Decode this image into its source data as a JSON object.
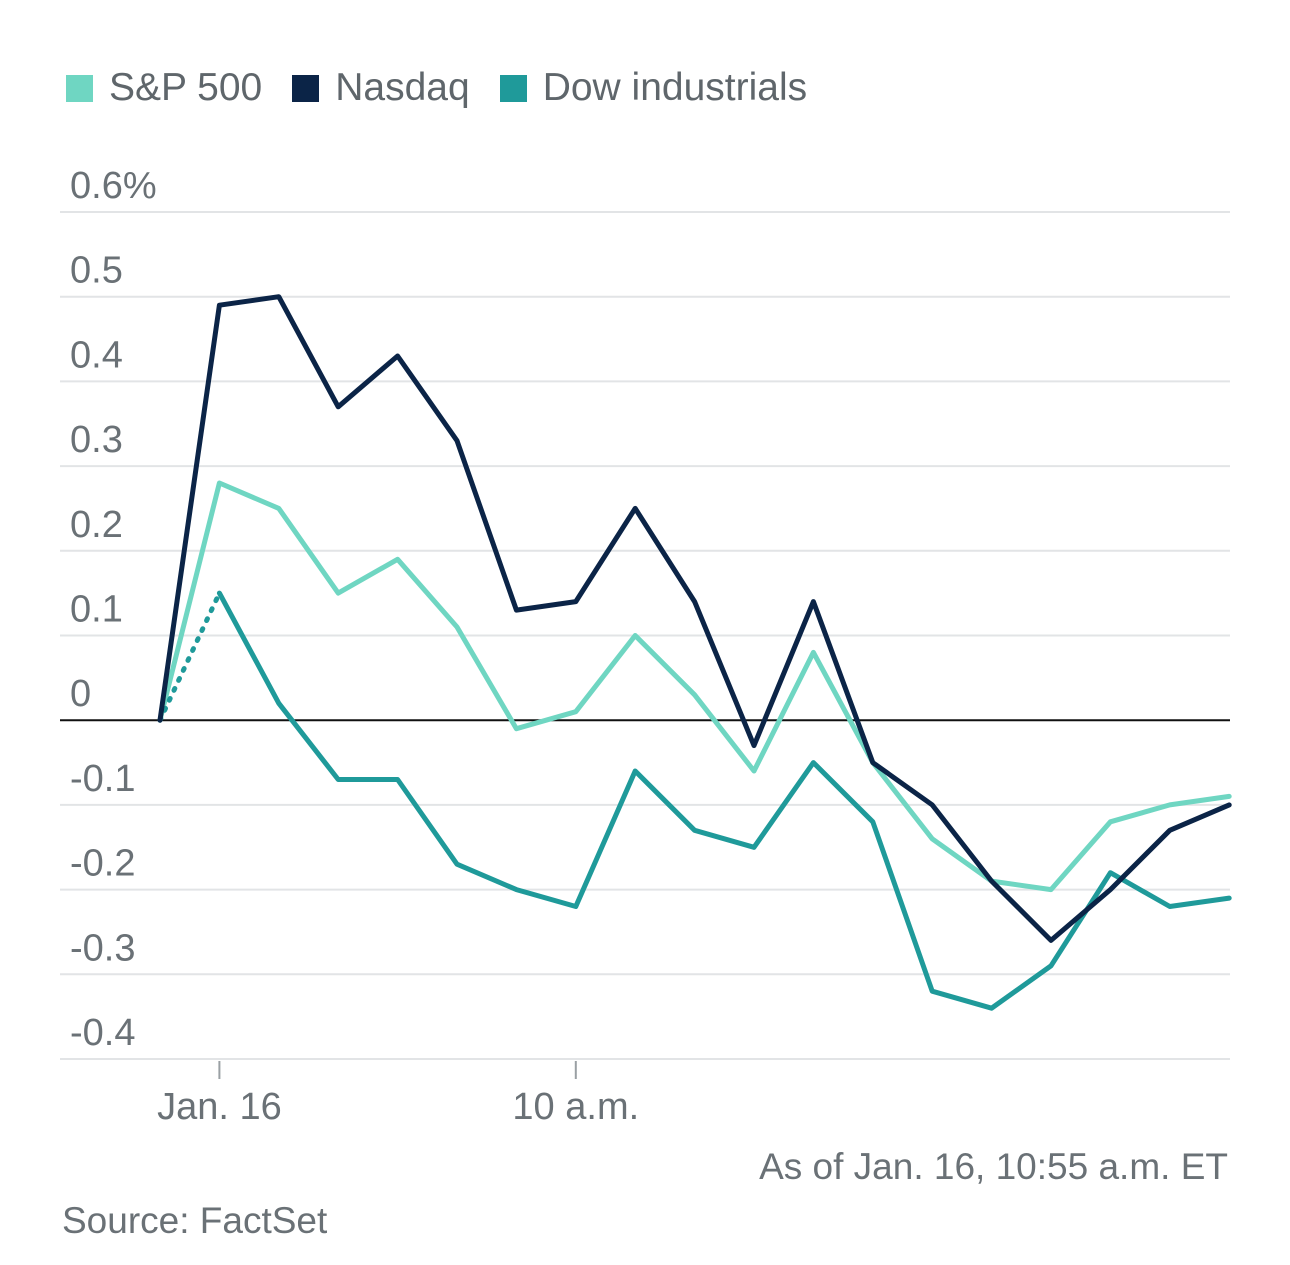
{
  "chart_data": {
    "type": "line",
    "title": "",
    "xlabel": "",
    "ylabel": "",
    "ylim": [
      -0.4,
      0.6
    ],
    "y_ticks": [
      {
        "value": 0.6,
        "label": "0.6%"
      },
      {
        "value": 0.5,
        "label": "0.5"
      },
      {
        "value": 0.4,
        "label": "0.4"
      },
      {
        "value": 0.3,
        "label": "0.3"
      },
      {
        "value": 0.2,
        "label": "0.2"
      },
      {
        "value": 0.1,
        "label": "0.1"
      },
      {
        "value": 0,
        "label": "0"
      },
      {
        "value": -0.1,
        "label": "-0.1"
      },
      {
        "value": -0.2,
        "label": "-0.2"
      },
      {
        "value": -0.3,
        "label": "-0.3"
      },
      {
        "value": -0.4,
        "label": "-0.4"
      }
    ],
    "x_ticks": [
      {
        "index": 1,
        "label": "Jan. 16"
      },
      {
        "index": 7,
        "label": "10 a.m."
      }
    ],
    "x_count": 19,
    "series": [
      {
        "name": "S&P 500",
        "color": "#6fd6c2",
        "values": [
          0.0,
          0.28,
          0.25,
          0.15,
          0.19,
          0.11,
          -0.01,
          0.01,
          0.1,
          0.03,
          -0.06,
          0.08,
          -0.05,
          -0.14,
          -0.19,
          -0.2,
          -0.12,
          -0.1,
          -0.09
        ]
      },
      {
        "name": "Nasdaq",
        "color": "#0b2447",
        "values": [
          0.0,
          0.49,
          0.5,
          0.37,
          0.43,
          0.33,
          0.13,
          0.14,
          0.25,
          0.14,
          -0.03,
          0.14,
          -0.05,
          -0.1,
          -0.19,
          -0.26,
          -0.2,
          -0.13,
          -0.1
        ]
      },
      {
        "name": "Dow industrials",
        "color": "#1f9a9a",
        "values": [
          0.0,
          0.15,
          0.02,
          -0.07,
          -0.07,
          -0.17,
          -0.2,
          -0.22,
          -0.06,
          -0.13,
          -0.15,
          -0.05,
          -0.12,
          -0.32,
          -0.34,
          -0.29,
          -0.18,
          -0.22,
          -0.21
        ]
      }
    ],
    "legend_position": "top-left",
    "grid": true
  },
  "footer": {
    "as_of": "As of Jan. 16, 10:55 a.m. ET",
    "source": "Source: FactSet"
  }
}
